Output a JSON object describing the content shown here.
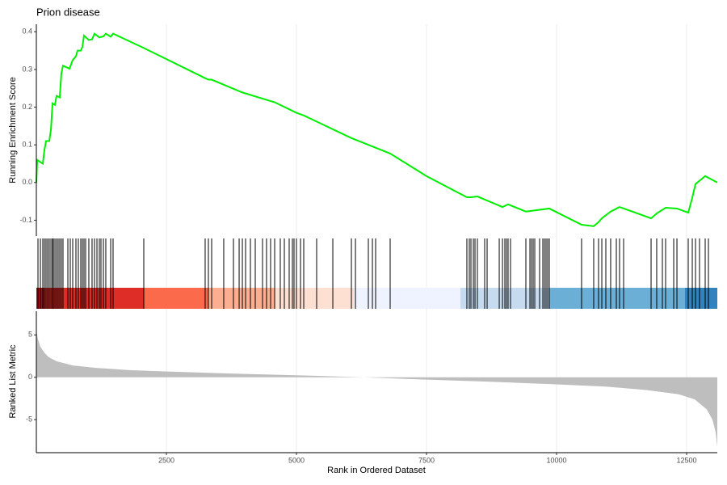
{
  "chart_data": [
    {
      "type": "line",
      "title": "Prion disease",
      "ylabel": "Running Enrichment Score",
      "color": "#00ee00",
      "x": [
        0,
        16,
        124,
        155,
        186,
        248,
        280,
        311,
        357,
        388,
        450,
        481,
        512,
        575,
        637,
        699,
        761,
        792,
        854,
        885,
        916,
        1009,
        1071,
        1118,
        1211,
        1289,
        1335,
        1429,
        1475,
        2065,
        3245,
        3307,
        3370,
        3960,
        4581,
        5000,
        5140,
        6056,
        6801,
        7500,
        8276,
        8354,
        8478,
        8960,
        9068,
        9410,
        9860,
        10481,
        10714,
        10807,
        10870,
        11040,
        11211,
        11817,
        11925,
        12096,
        12314,
        12531,
        12609,
        12671,
        12857,
        13090
      ],
      "values": [
        0,
        0.06,
        0.05,
        0.086,
        0.11,
        0.11,
        0.14,
        0.21,
        0.206,
        0.23,
        0.226,
        0.29,
        0.31,
        0.306,
        0.302,
        0.325,
        0.335,
        0.35,
        0.35,
        0.36,
        0.39,
        0.378,
        0.38,
        0.395,
        0.385,
        0.388,
        0.395,
        0.387,
        0.395,
        0.357,
        0.277,
        0.273,
        0.273,
        0.239,
        0.213,
        0.185,
        0.178,
        0.118,
        0.077,
        0.017,
        -0.039,
        -0.039,
        -0.037,
        -0.065,
        -0.058,
        -0.077,
        -0.069,
        -0.112,
        -0.116,
        -0.105,
        -0.095,
        -0.077,
        -0.065,
        -0.095,
        -0.082,
        -0.067,
        -0.069,
        -0.08,
        -0.04,
        -0.004,
        0.017,
        0
      ],
      "xlim": [
        0,
        13090
      ],
      "ylim": [
        -0.142,
        0.42
      ],
      "yticks": [
        -0.1,
        {
          "value": 0,
          "label": "0.0"
        },
        0.1,
        0.2,
        0.3,
        0.4
      ],
      "xticks": [
        2500,
        5000,
        7500,
        10000,
        12500
      ],
      "xtick_labels": false,
      "grid": true
    },
    {
      "type": "rug",
      "hit_color": "#000000",
      "hits": [
        31,
        78,
        124,
        155,
        186,
        217,
        248,
        280,
        311,
        326,
        357,
        388,
        419,
        450,
        481,
        512,
        606,
        652,
        699,
        761,
        807,
        854,
        885,
        916,
        947,
        1009,
        1071,
        1118,
        1165,
        1211,
        1242,
        1289,
        1335,
        1429,
        1475,
        2065,
        3245,
        3307,
        3370,
        3602,
        3789,
        3898,
        3960,
        4022,
        4115,
        4208,
        4348,
        4425,
        4503,
        4581,
        4689,
        4767,
        4860,
        4922,
        4953,
        5000,
        5078,
        5140,
        5388,
        5699,
        6056,
        6134,
        6382,
        6460,
        6522,
        6801,
        8276,
        8323,
        8354,
        8401,
        8432,
        8478,
        8618,
        8665,
        8898,
        8960,
        9006,
        9037,
        9068,
        9115,
        9410,
        9488,
        9519,
        9550,
        9581,
        9674,
        9736,
        9767,
        9798,
        9829,
        9860,
        10481,
        10714,
        10807,
        10870,
        10947,
        11040,
        11149,
        11211,
        11289,
        11817,
        11925,
        12034,
        12096,
        12252,
        12314,
        12531,
        12609,
        12671,
        12748,
        12857,
        12919
      ],
      "bands": [
        {
          "start": 0,
          "end": 155,
          "color": "#a50f15"
        },
        {
          "start": 155,
          "end": 2065,
          "color": "#de2d26"
        },
        {
          "start": 2065,
          "end": 3307,
          "color": "#fb6a4a"
        },
        {
          "start": 3307,
          "end": 4581,
          "color": "#fcae91"
        },
        {
          "start": 4581,
          "end": 6102,
          "color": "#fee0d2"
        },
        {
          "start": 6102,
          "end": 8152,
          "color": "#eff3ff"
        },
        {
          "start": 8152,
          "end": 9860,
          "color": "#c6dbef"
        },
        {
          "start": 9860,
          "end": 12469,
          "color": "#6baed6"
        },
        {
          "start": 12469,
          "end": 13090,
          "color": "#3182bd"
        }
      ],
      "xlim": [
        0,
        13090
      ],
      "xticks": [
        2500,
        5000,
        7500,
        10000,
        12500
      ],
      "xtick_labels": false,
      "grid": true
    },
    {
      "type": "area",
      "ylabel": "Ranked List Metric",
      "xlabel": "Rank in Ordered Dataset",
      "color": "#bebebe",
      "x": [
        0,
        31,
        78,
        155,
        233,
        388,
        699,
        1165,
        1786,
        2407,
        3960,
        5202,
        6289,
        7376,
        8618,
        9860,
        10947,
        11724,
        12345,
        12655,
        12888,
        12997,
        13059,
        13090
      ],
      "values": [
        5.5,
        4.5,
        3.6,
        2.9,
        2.4,
        1.9,
        1.4,
        1.1,
        0.85,
        0.7,
        0.4,
        0.2,
        0,
        -0.25,
        -0.5,
        -0.8,
        -1.1,
        -1.5,
        -2.0,
        -2.6,
        -3.8,
        -5,
        -6.5,
        -8.2
      ],
      "xlim": [
        0,
        13090
      ],
      "ylim": [
        -8.9,
        7.8
      ],
      "yticks": [
        -5,
        0,
        5
      ],
      "xticks": [
        2500,
        5000,
        7500,
        10000,
        12500
      ],
      "xtick_labels": true,
      "grid": true
    }
  ]
}
